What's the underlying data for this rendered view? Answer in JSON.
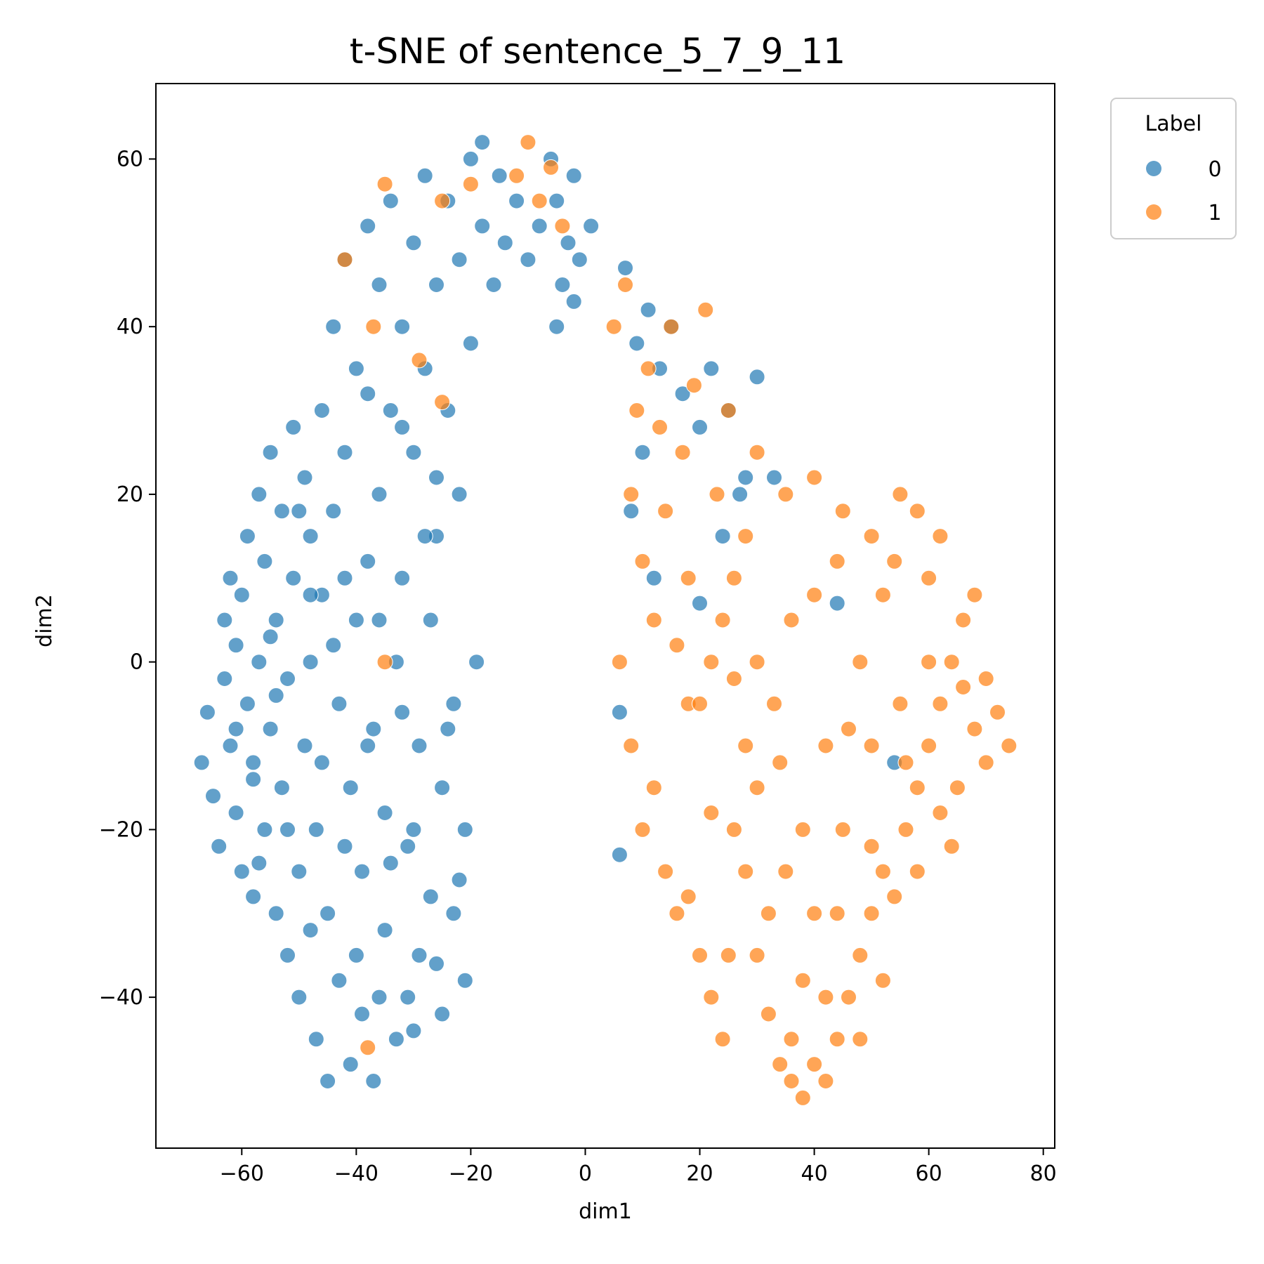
{
  "chart_data": {
    "type": "scatter",
    "title": "t-SNE of sentence_5_7_9_11",
    "xlabel": "dim1",
    "ylabel": "dim2",
    "xlim": [
      -75,
      82
    ],
    "ylim": [
      -58,
      69
    ],
    "xticks": [
      -60,
      -40,
      -20,
      0,
      20,
      40,
      60,
      80
    ],
    "yticks": [
      -40,
      -20,
      0,
      20,
      40,
      60
    ],
    "tick_labels": {
      "x": [
        "−60",
        "−40",
        "−20",
        "0",
        "20",
        "40",
        "60",
        "80"
      ],
      "y": [
        "−40",
        "−20",
        "0",
        "20",
        "40",
        "60"
      ]
    },
    "grid": false,
    "legend": {
      "title": "Label",
      "placement": "outside upper right",
      "entries": [
        {
          "label": "0",
          "color": "#1f77b4"
        },
        {
          "label": "1",
          "color": "#ff7f0e"
        }
      ]
    },
    "point_alpha": 0.7,
    "series": [
      {
        "name": "0",
        "color": "#1f77b4",
        "points": [
          [
            -67,
            -12
          ],
          [
            -66,
            -6
          ],
          [
            -65,
            -16
          ],
          [
            -64,
            -22
          ],
          [
            -63,
            -2
          ],
          [
            -63,
            5
          ],
          [
            -62,
            -10
          ],
          [
            -62,
            10
          ],
          [
            -61,
            -18
          ],
          [
            -61,
            2
          ],
          [
            -60,
            -25
          ],
          [
            -60,
            8
          ],
          [
            -59,
            -5
          ],
          [
            -59,
            15
          ],
          [
            -58,
            -28
          ],
          [
            -58,
            -12
          ],
          [
            -57,
            0
          ],
          [
            -57,
            20
          ],
          [
            -56,
            -20
          ],
          [
            -56,
            12
          ],
          [
            -55,
            -8
          ],
          [
            -55,
            25
          ],
          [
            -54,
            -30
          ],
          [
            -54,
            5
          ],
          [
            -53,
            -15
          ],
          [
            -53,
            18
          ],
          [
            -52,
            -35
          ],
          [
            -52,
            -2
          ],
          [
            -51,
            28
          ],
          [
            -51,
            10
          ],
          [
            -50,
            -25
          ],
          [
            -50,
            -40
          ],
          [
            -49,
            22
          ],
          [
            -49,
            -10
          ],
          [
            -48,
            0
          ],
          [
            -48,
            15
          ],
          [
            -47,
            -45
          ],
          [
            -47,
            -20
          ],
          [
            -46,
            30
          ],
          [
            -46,
            8
          ],
          [
            -45,
            -50
          ],
          [
            -45,
            -30
          ],
          [
            -44,
            40
          ],
          [
            -44,
            18
          ],
          [
            -43,
            -5
          ],
          [
            -43,
            -38
          ],
          [
            -42,
            48
          ],
          [
            -42,
            25
          ],
          [
            -41,
            -15
          ],
          [
            -41,
            -48
          ],
          [
            -40,
            35
          ],
          [
            -40,
            5
          ],
          [
            -39,
            -25
          ],
          [
            -39,
            -42
          ],
          [
            -38,
            52
          ],
          [
            -38,
            12
          ],
          [
            -37,
            -8
          ],
          [
            -37,
            -50
          ],
          [
            -36,
            45
          ],
          [
            -36,
            20
          ],
          [
            -35,
            -32
          ],
          [
            -35,
            -18
          ],
          [
            -34,
            55
          ],
          [
            -34,
            30
          ],
          [
            -33,
            0
          ],
          [
            -33,
            -45
          ],
          [
            -32,
            40
          ],
          [
            -32,
            10
          ],
          [
            -31,
            -22
          ],
          [
            -31,
            -40
          ],
          [
            -30,
            50
          ],
          [
            -30,
            25
          ],
          [
            -29,
            -10
          ],
          [
            -29,
            -35
          ],
          [
            -28,
            58
          ],
          [
            -28,
            35
          ],
          [
            -27,
            5
          ],
          [
            -27,
            -28
          ],
          [
            -26,
            45
          ],
          [
            -26,
            15
          ],
          [
            -25,
            -15
          ],
          [
            -25,
            -42
          ],
          [
            -24,
            55
          ],
          [
            -24,
            30
          ],
          [
            -23,
            -5
          ],
          [
            -23,
            -30
          ],
          [
            -22,
            48
          ],
          [
            -22,
            20
          ],
          [
            -21,
            -20
          ],
          [
            -21,
            -38
          ],
          [
            -20,
            60
          ],
          [
            -20,
            38
          ],
          [
            -19,
            0
          ],
          [
            -18,
            52
          ],
          [
            -18,
            62
          ],
          [
            -16,
            45
          ],
          [
            -15,
            58
          ],
          [
            -14,
            50
          ],
          [
            -12,
            55
          ],
          [
            -10,
            48
          ],
          [
            -8,
            52
          ],
          [
            -6,
            60
          ],
          [
            -5,
            55
          ],
          [
            -4,
            45
          ],
          [
            -3,
            50
          ],
          [
            -2,
            58
          ],
          [
            -1,
            48
          ],
          [
            1,
            52
          ],
          [
            -5,
            40
          ],
          [
            -2,
            43
          ],
          [
            7,
            47
          ],
          [
            9,
            38
          ],
          [
            11,
            42
          ],
          [
            13,
            35
          ],
          [
            15,
            40
          ],
          [
            17,
            32
          ],
          [
            20,
            28
          ],
          [
            22,
            35
          ],
          [
            25,
            30
          ],
          [
            28,
            22
          ],
          [
            24,
            15
          ],
          [
            27,
            20
          ],
          [
            12,
            10
          ],
          [
            10,
            25
          ],
          [
            8,
            18
          ],
          [
            20,
            7
          ],
          [
            30,
            34
          ],
          [
            44,
            7
          ],
          [
            54,
            -12
          ],
          [
            33,
            22
          ],
          [
            6,
            -6
          ],
          [
            6,
            -23
          ],
          [
            -61,
            -8
          ],
          [
            -58,
            -14
          ],
          [
            -57,
            -24
          ],
          [
            -55,
            3
          ],
          [
            -52,
            -20
          ],
          [
            -50,
            18
          ],
          [
            -48,
            -32
          ],
          [
            -46,
            -12
          ],
          [
            -44,
            2
          ],
          [
            -42,
            -22
          ],
          [
            -40,
            -35
          ],
          [
            -38,
            -10
          ],
          [
            -36,
            5
          ],
          [
            -34,
            -24
          ],
          [
            -32,
            -6
          ],
          [
            -30,
            -44
          ],
          [
            -28,
            15
          ],
          [
            -26,
            -36
          ],
          [
            -24,
            -8
          ],
          [
            -22,
            -26
          ],
          [
            -30,
            -20
          ],
          [
            -36,
            -40
          ],
          [
            -42,
            10
          ],
          [
            -48,
            8
          ],
          [
            -54,
            -4
          ],
          [
            -38,
            32
          ],
          [
            -32,
            28
          ],
          [
            -26,
            22
          ]
        ]
      },
      {
        "name": "1",
        "color": "#ff7f0e",
        "points": [
          [
            -38,
            -46
          ],
          [
            -35,
            0
          ],
          [
            -37,
            40
          ],
          [
            -42,
            48
          ],
          [
            -35,
            57
          ],
          [
            -25,
            55
          ],
          [
            -25,
            31
          ],
          [
            -20,
            57
          ],
          [
            -12,
            58
          ],
          [
            -10,
            62
          ],
          [
            -8,
            55
          ],
          [
            -6,
            59
          ],
          [
            -4,
            52
          ],
          [
            -29,
            36
          ],
          [
            5,
            40
          ],
          [
            7,
            45
          ],
          [
            9,
            30
          ],
          [
            11,
            35
          ],
          [
            13,
            28
          ],
          [
            15,
            40
          ],
          [
            17,
            25
          ],
          [
            19,
            33
          ],
          [
            21,
            42
          ],
          [
            23,
            20
          ],
          [
            25,
            30
          ],
          [
            8,
            20
          ],
          [
            10,
            12
          ],
          [
            12,
            5
          ],
          [
            6,
            0
          ],
          [
            8,
            -10
          ],
          [
            10,
            -20
          ],
          [
            12,
            -15
          ],
          [
            14,
            -25
          ],
          [
            16,
            -30
          ],
          [
            18,
            -5
          ],
          [
            20,
            -35
          ],
          [
            22,
            -40
          ],
          [
            24,
            -45
          ],
          [
            26,
            -20
          ],
          [
            28,
            -10
          ],
          [
            30,
            0
          ],
          [
            32,
            -30
          ],
          [
            34,
            -48
          ],
          [
            36,
            -50
          ],
          [
            38,
            -52
          ],
          [
            40,
            -48
          ],
          [
            42,
            -50
          ],
          [
            44,
            -45
          ],
          [
            46,
            -40
          ],
          [
            48,
            -35
          ],
          [
            50,
            -30
          ],
          [
            52,
            -25
          ],
          [
            54,
            -28
          ],
          [
            56,
            -20
          ],
          [
            58,
            -15
          ],
          [
            60,
            -10
          ],
          [
            62,
            -5
          ],
          [
            64,
            0
          ],
          [
            66,
            5
          ],
          [
            68,
            -8
          ],
          [
            70,
            -12
          ],
          [
            72,
            -6
          ],
          [
            74,
            -10
          ],
          [
            60,
            10
          ],
          [
            62,
            15
          ],
          [
            58,
            18
          ],
          [
            55,
            20
          ],
          [
            50,
            15
          ],
          [
            45,
            18
          ],
          [
            40,
            22
          ],
          [
            35,
            20
          ],
          [
            30,
            25
          ],
          [
            28,
            15
          ],
          [
            26,
            10
          ],
          [
            24,
            5
          ],
          [
            22,
            0
          ],
          [
            20,
            -5
          ],
          [
            30,
            -15
          ],
          [
            35,
            -25
          ],
          [
            40,
            -30
          ],
          [
            45,
            -20
          ],
          [
            50,
            -10
          ],
          [
            55,
            -5
          ],
          [
            60,
            0
          ],
          [
            65,
            -15
          ],
          [
            68,
            8
          ],
          [
            52,
            8
          ],
          [
            48,
            0
          ],
          [
            42,
            -10
          ],
          [
            38,
            -20
          ],
          [
            33,
            -5
          ],
          [
            28,
            -25
          ],
          [
            25,
            -35
          ],
          [
            32,
            -42
          ],
          [
            38,
            -38
          ],
          [
            44,
            -30
          ],
          [
            50,
            -22
          ],
          [
            56,
            -12
          ],
          [
            62,
            -18
          ],
          [
            66,
            -3
          ],
          [
            14,
            18
          ],
          [
            18,
            10
          ],
          [
            16,
            2
          ],
          [
            26,
            -2
          ],
          [
            36,
            5
          ],
          [
            44,
            12
          ],
          [
            54,
            12
          ],
          [
            46,
            -8
          ],
          [
            40,
            8
          ],
          [
            34,
            -12
          ],
          [
            22,
            -18
          ],
          [
            18,
            -28
          ],
          [
            30,
            -35
          ],
          [
            36,
            -45
          ],
          [
            42,
            -40
          ],
          [
            48,
            -45
          ],
          [
            52,
            -38
          ],
          [
            58,
            -25
          ],
          [
            64,
            -22
          ],
          [
            70,
            -2
          ]
        ]
      }
    ]
  }
}
